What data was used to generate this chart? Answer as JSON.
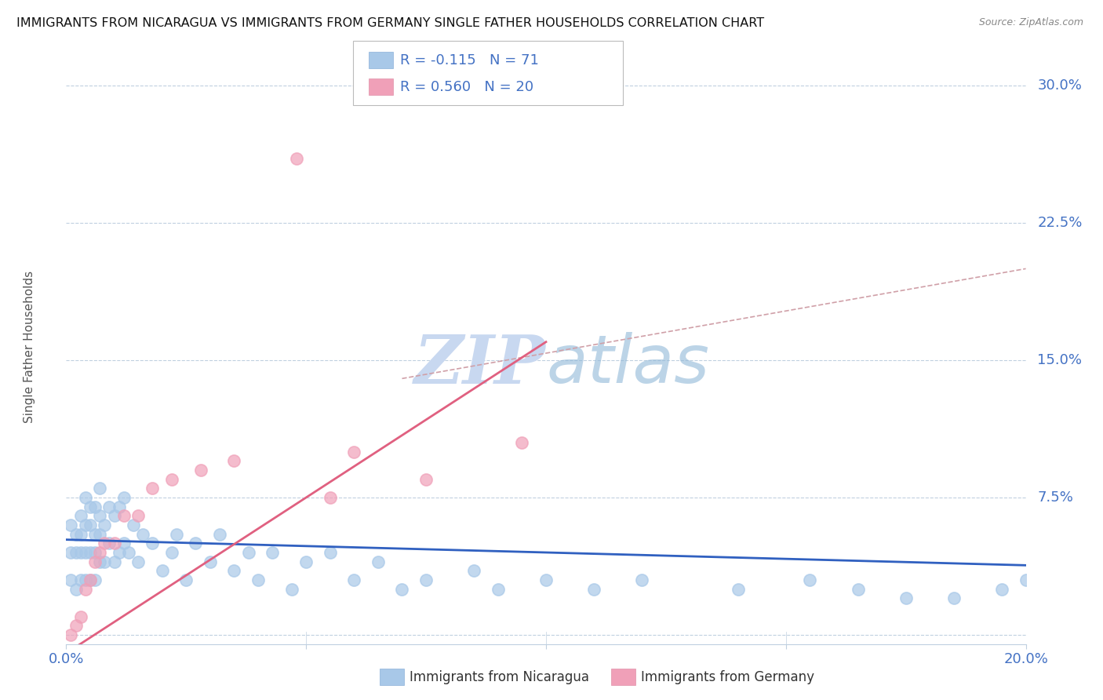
{
  "title": "IMMIGRANTS FROM NICARAGUA VS IMMIGRANTS FROM GERMANY SINGLE FATHER HOUSEHOLDS CORRELATION CHART",
  "source": "Source: ZipAtlas.com",
  "ylabel": "Single Father Households",
  "legend_label_blue": "Immigrants from Nicaragua",
  "legend_label_pink": "Immigrants from Germany",
  "R_blue": -0.115,
  "N_blue": 71,
  "R_pink": 0.56,
  "N_pink": 20,
  "xlim": [
    0.0,
    0.2
  ],
  "ylim": [
    -0.005,
    0.32
  ],
  "color_blue": "#a8c8e8",
  "color_pink": "#f0a0b8",
  "line_blue": "#3060c0",
  "line_pink": "#e06080",
  "line_dashed_color": "#d0a0a8",
  "watermark_color": "#c8d8f0",
  "background_color": "#ffffff",
  "grid_color": "#c0d0e0",
  "tick_color": "#4472c4",
  "title_fontsize": 11.5,
  "source_fontsize": 9,
  "tick_fontsize": 13,
  "ylabel_fontsize": 11,
  "legend_fontsize": 13,
  "blue_scatter_x": [
    0.001,
    0.001,
    0.001,
    0.002,
    0.002,
    0.002,
    0.003,
    0.003,
    0.003,
    0.003,
    0.004,
    0.004,
    0.004,
    0.004,
    0.005,
    0.005,
    0.005,
    0.005,
    0.006,
    0.006,
    0.006,
    0.006,
    0.007,
    0.007,
    0.007,
    0.007,
    0.008,
    0.008,
    0.009,
    0.009,
    0.01,
    0.01,
    0.011,
    0.011,
    0.012,
    0.012,
    0.013,
    0.014,
    0.015,
    0.016,
    0.018,
    0.02,
    0.022,
    0.023,
    0.025,
    0.027,
    0.03,
    0.032,
    0.035,
    0.038,
    0.04,
    0.043,
    0.047,
    0.05,
    0.055,
    0.06,
    0.065,
    0.07,
    0.075,
    0.085,
    0.09,
    0.1,
    0.11,
    0.12,
    0.14,
    0.155,
    0.165,
    0.175,
    0.185,
    0.195,
    0.2
  ],
  "blue_scatter_y": [
    0.03,
    0.045,
    0.06,
    0.025,
    0.045,
    0.055,
    0.03,
    0.045,
    0.055,
    0.065,
    0.03,
    0.045,
    0.06,
    0.075,
    0.03,
    0.045,
    0.06,
    0.07,
    0.03,
    0.045,
    0.055,
    0.07,
    0.04,
    0.055,
    0.065,
    0.08,
    0.04,
    0.06,
    0.05,
    0.07,
    0.04,
    0.065,
    0.045,
    0.07,
    0.05,
    0.075,
    0.045,
    0.06,
    0.04,
    0.055,
    0.05,
    0.035,
    0.045,
    0.055,
    0.03,
    0.05,
    0.04,
    0.055,
    0.035,
    0.045,
    0.03,
    0.045,
    0.025,
    0.04,
    0.045,
    0.03,
    0.04,
    0.025,
    0.03,
    0.035,
    0.025,
    0.03,
    0.025,
    0.03,
    0.025,
    0.03,
    0.025,
    0.02,
    0.02,
    0.025,
    0.03
  ],
  "pink_scatter_x": [
    0.001,
    0.002,
    0.003,
    0.004,
    0.005,
    0.006,
    0.007,
    0.008,
    0.01,
    0.012,
    0.015,
    0.018,
    0.022,
    0.028,
    0.035,
    0.048,
    0.055,
    0.06,
    0.075,
    0.095
  ],
  "pink_scatter_y": [
    0.0,
    0.005,
    0.01,
    0.025,
    0.03,
    0.04,
    0.045,
    0.05,
    0.05,
    0.065,
    0.065,
    0.08,
    0.085,
    0.09,
    0.095,
    0.26,
    0.075,
    0.1,
    0.085,
    0.105
  ],
  "nic_line_x0": 0.0,
  "nic_line_x1": 0.2,
  "nic_line_y0": 0.052,
  "nic_line_y1": 0.038,
  "ger_line_x0": 0.0,
  "ger_line_x1": 0.1,
  "ger_line_y0": -0.01,
  "ger_line_y1": 0.16,
  "dash_line_x0": 0.07,
  "dash_line_x1": 0.2,
  "dash_line_y0": 0.14,
  "dash_line_y1": 0.2
}
